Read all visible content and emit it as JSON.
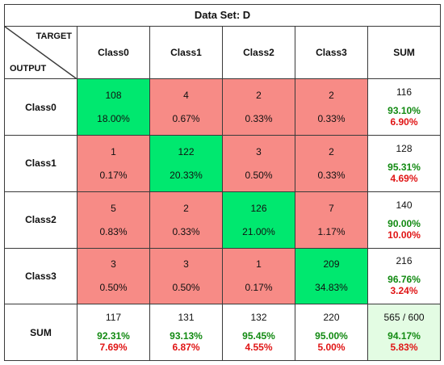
{
  "chart_data": {
    "type": "table",
    "title": "Data Set: D",
    "axis_target": "TARGET",
    "axis_output": "OUTPUT",
    "columns": [
      "Class0",
      "Class1",
      "Class2",
      "Class3"
    ],
    "rows": [
      "Class0",
      "Class1",
      "Class2",
      "Class3"
    ],
    "sum_label": "SUM",
    "matrix": [
      [
        {
          "count": "108",
          "pct": "18.00%"
        },
        {
          "count": "4",
          "pct": "0.67%"
        },
        {
          "count": "2",
          "pct": "0.33%"
        },
        {
          "count": "2",
          "pct": "0.33%"
        }
      ],
      [
        {
          "count": "1",
          "pct": "0.17%"
        },
        {
          "count": "122",
          "pct": "20.33%"
        },
        {
          "count": "3",
          "pct": "0.50%"
        },
        {
          "count": "2",
          "pct": "0.33%"
        }
      ],
      [
        {
          "count": "5",
          "pct": "0.83%"
        },
        {
          "count": "2",
          "pct": "0.33%"
        },
        {
          "count": "126",
          "pct": "21.00%"
        },
        {
          "count": "7",
          "pct": "1.17%"
        }
      ],
      [
        {
          "count": "3",
          "pct": "0.50%"
        },
        {
          "count": "3",
          "pct": "0.50%"
        },
        {
          "count": "1",
          "pct": "0.17%"
        },
        {
          "count": "209",
          "pct": "34.83%"
        }
      ]
    ],
    "row_sums": [
      {
        "count": "116",
        "correct": "93.10%",
        "wrong": "6.90%"
      },
      {
        "count": "128",
        "correct": "95.31%",
        "wrong": "4.69%"
      },
      {
        "count": "140",
        "correct": "90.00%",
        "wrong": "10.00%"
      },
      {
        "count": "216",
        "correct": "96.76%",
        "wrong": "3.24%"
      }
    ],
    "col_sums": [
      {
        "count": "117",
        "correct": "92.31%",
        "wrong": "7.69%"
      },
      {
        "count": "131",
        "correct": "93.13%",
        "wrong": "6.87%"
      },
      {
        "count": "132",
        "correct": "95.45%",
        "wrong": "4.55%"
      },
      {
        "count": "220",
        "correct": "95.00%",
        "wrong": "5.00%"
      }
    ],
    "total": {
      "count": "565 / 600",
      "correct": "94.17%",
      "wrong": "5.83%"
    },
    "colors": {
      "diagonal": "#00e86f",
      "off_diagonal": "#f78b86",
      "total_cell": "#e3fce3",
      "correct_text": "#128a12",
      "wrong_text": "#e01515"
    }
  }
}
